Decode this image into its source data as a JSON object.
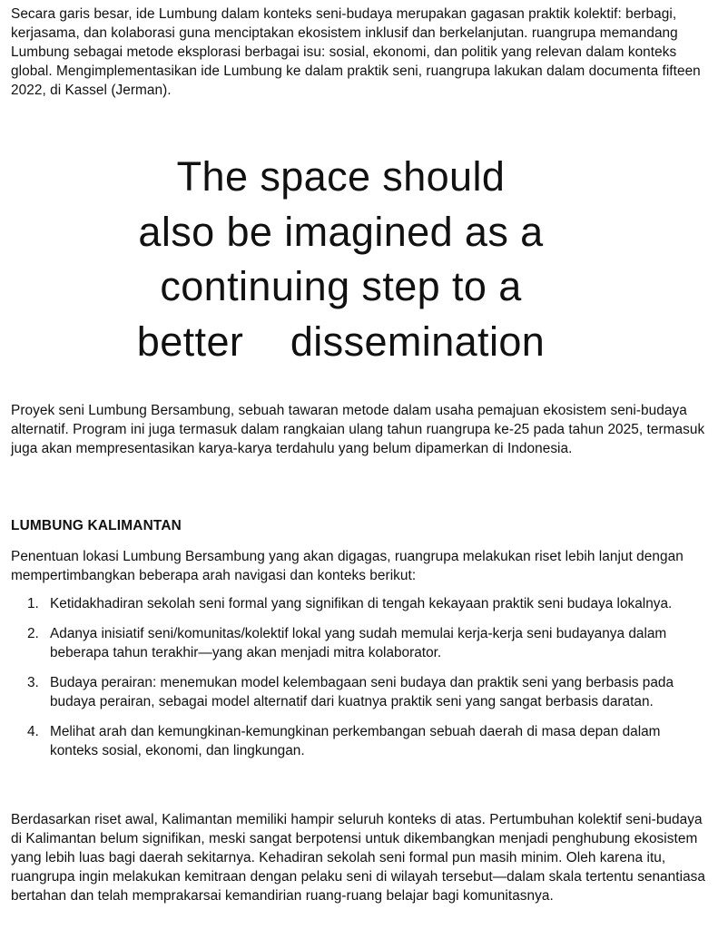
{
  "intro": "Secara garis besar, ide Lumbung dalam konteks seni-budaya merupakan gagasan praktik kolektif: berbagi, kerjasama, dan kolaborasi guna menciptakan ekosistem inklusif dan berkelanjutan. ruangrupa memandang Lumbung sebagai metode eksplorasi berbagai isu: sosial, ekonomi, dan politik yang relevan dalam konteks global. Mengimplementasikan ide Lumbung ke dalam praktik seni, ruangrupa lakukan dalam documenta fifteen 2022, di Kassel (Jerman).",
  "quote": {
    "lines": [
      "The space should",
      "also be imagined as a",
      "continuing step to a",
      "better    dissemination"
    ]
  },
  "project": "Proyek seni Lumbung Bersambung, sebuah tawaran metode dalam usaha pemajuan ekosistem seni-budaya alternatif. Program ini juga termasuk dalam rangkaian ulang tahun ruangrupa ke-25 pada tahun 2025, termasuk juga akan mempresentasikan karya-karya terdahulu yang belum dipamerkan di Indonesia.",
  "section": {
    "heading": "LUMBUNG KALIMANTAN",
    "lead": "Penentuan lokasi Lumbung Bersambung yang akan digagas, ruangrupa melakukan riset lebih lanjut dengan mempertimbangkan beberapa arah navigasi dan konteks berikut:",
    "items": [
      {
        "num": "1.",
        "text": "Ketidakhadiran sekolah seni formal yang signifikan di tengah kekayaan praktik seni budaya lokalnya."
      },
      {
        "num": "2.",
        "text": "Adanya inisiatif seni/komunitas/kolektif lokal yang sudah memulai kerja-kerja seni budayanya dalam beberapa tahun terakhir—yang akan menjadi mitra kolaborator."
      },
      {
        "num": "3.",
        "text": "Budaya perairan: menemukan model kelembagaan seni budaya dan praktik seni yang berbasis pada budaya perairan, sebagai model alternatif dari kuatnya praktik seni yang sangat berbasis daratan."
      },
      {
        "num": "4.",
        "text": "Melihat arah dan kemungkinan-kemungkinan perkembangan sebuah daerah di masa depan dalam konteks sosial, ekonomi, dan lingkungan."
      }
    ],
    "closing": "Berdasarkan riset awal, Kalimantan memiliki hampir seluruh konteks di atas. Pertumbuhan kolektif seni-budaya di Kalimantan belum signifikan, meski sangat berpotensi untuk dikembangkan menjadi penghubung ekosistem yang lebih luas bagi daerah sekitarnya. Kehadiran sekolah seni formal pun masih minim. Oleh karena itu, ruangrupa ingin melakukan kemitraan dengan pelaku seni di wilayah tersebut—dalam skala tertentu senantiasa bertahan dan telah memprakarsai kemandirian ruang-ruang belajar bagi komunitasnya."
  }
}
